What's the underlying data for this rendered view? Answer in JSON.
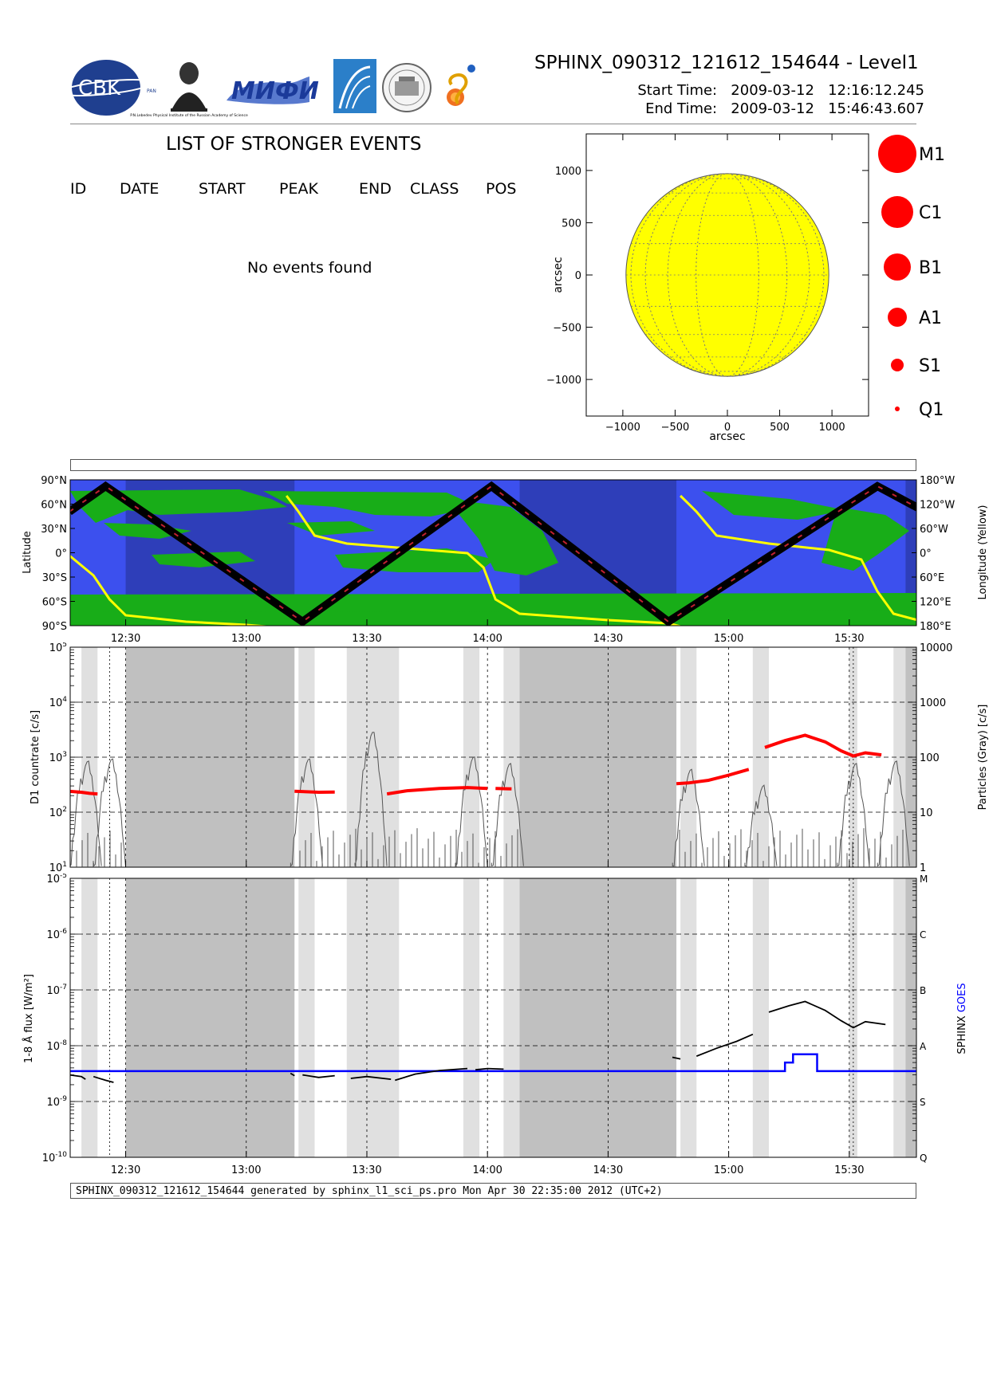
{
  "header": {
    "title": "SPHINX_090312_121612_154644 - Level1",
    "start_label": "Start Time:",
    "start_date": "2009-03-12",
    "start_time": "12:16:12.245",
    "end_label": "End Time:",
    "end_date": "2009-03-12",
    "end_time": "15:46:43.607",
    "logos": [
      "cbk-logo",
      "lebedev-portrait-logo",
      "miph-logo",
      "arc-logo",
      "seal-logo",
      "solar-logo"
    ],
    "cbk_text": "CBK",
    "cbk_small": "PAN",
    "lebedev_caption": "P.N.Lebedev Physical Institute of the Russian Academy of Science",
    "miph_text": "МИФИ"
  },
  "events": {
    "heading": "LIST OF STRONGER EVENTS",
    "columns": [
      "ID",
      "DATE",
      "START",
      "PEAK",
      "END",
      "CLASS",
      "POS"
    ],
    "empty_message": "No events found"
  },
  "legend": {
    "items": [
      {
        "label": "M1",
        "radius": 24
      },
      {
        "label": "C1",
        "radius": 20
      },
      {
        "label": "B1",
        "radius": 17
      },
      {
        "label": "A1",
        "radius": 12
      },
      {
        "label": "S1",
        "radius": 8
      },
      {
        "label": "Q1",
        "radius": 3
      }
    ],
    "color": "#ff0000"
  },
  "footer": {
    "text": "SPHINX_090312_121612_154644 generated by sphinx_l1_sci_ps.pro Mon Apr 30 22:35:00 2012 (UTC+2)"
  },
  "chart_data": [
    {
      "type": "scatter",
      "name": "solar-disk-map",
      "xlabel": "arcsec",
      "ylabel": "arcsec",
      "xlim": [
        -1350,
        1350
      ],
      "ylim": [
        -1350,
        1350
      ],
      "xticks": [
        "−1000",
        "−500",
        "0",
        "500",
        "1000"
      ],
      "yticks": [
        "−1000",
        "−500",
        "0",
        "500",
        "1000"
      ],
      "disk_radius": 970,
      "disk_color": "#ffff00",
      "grid": "dotted"
    },
    {
      "type": "line",
      "name": "orbit-map",
      "ylabel_left": "Latitude",
      "ylabel_right": "Longitude (Yellow)",
      "yticks_left": [
        "90°N",
        "60°N",
        "30°N",
        "0°",
        "30°S",
        "60°S",
        "90°S"
      ],
      "yticks_right": [
        "180°W",
        "120°W",
        "60°W",
        "0°",
        "60°E",
        "120°E",
        "180°E"
      ],
      "xticks": [
        "12:30",
        "13:00",
        "13:30",
        "14:00",
        "14:30",
        "15:00",
        "15:30"
      ],
      "colors": {
        "ocean": "#3c50ee",
        "land": "#18ad18",
        "track": "#000000",
        "longitude": "#ffff00"
      }
    },
    {
      "type": "line",
      "name": "d1-countrate",
      "ylabel_left": "D1 countrate [c/s]",
      "ylabel_right": "Particles (Gray) [c/s]",
      "yscale": "log",
      "ylim": [
        10,
        100000
      ],
      "yticks_left": [
        "10^1",
        "10^2",
        "10^3",
        "10^4",
        "10^5"
      ],
      "yticks_right": [
        "1",
        "10",
        "100",
        "1000",
        "10000"
      ],
      "xticks": [
        "12:30",
        "13:00",
        "13:30",
        "14:00",
        "14:30",
        "15:00",
        "15:30"
      ],
      "series": [
        {
          "name": "D1",
          "color": "#ff0000",
          "segments": [
            [
              [
                "12:16",
                240
              ],
              [
                "12:19",
                230
              ],
              [
                "12:21",
                220
              ],
              [
                "12:23",
                215
              ]
            ],
            [
              [
                "13:12",
                240
              ],
              [
                "13:15",
                235
              ],
              [
                "13:18",
                230
              ],
              [
                "13:22",
                232
              ]
            ],
            [
              [
                "13:35",
                215
              ],
              [
                "13:40",
                245
              ],
              [
                "13:48",
                270
              ],
              [
                "13:55",
                280
              ],
              [
                "14:00",
                270
              ]
            ],
            [
              [
                "14:02",
                270
              ],
              [
                "14:06",
                265
              ]
            ],
            [
              [
                "14:47",
                330
              ],
              [
                "14:50",
                340
              ],
              [
                "14:55",
                380
              ],
              [
                "15:00",
                470
              ],
              [
                "15:05",
                600
              ]
            ],
            [
              [
                "15:09",
                1500
              ],
              [
                "15:14",
                2000
              ],
              [
                "15:19",
                2500
              ],
              [
                "15:24",
                1900
              ],
              [
                "15:28",
                1300
              ],
              [
                "15:31",
                1050
              ],
              [
                "15:34",
                1200
              ],
              [
                "15:38",
                1100
              ]
            ]
          ]
        },
        {
          "name": "Particles",
          "color": "#555555",
          "peaks": [
            [
              "12:20",
              1000
            ],
            [
              "12:26",
              1100
            ],
            [
              "13:15",
              1100
            ],
            [
              "13:31",
              3500
            ],
            [
              "13:56",
              1200
            ],
            [
              "14:05",
              900
            ],
            [
              "14:50",
              700
            ],
            [
              "15:08",
              350
            ],
            [
              "15:31",
              900
            ],
            [
              "15:41",
              1000
            ]
          ]
        }
      ]
    },
    {
      "type": "line",
      "name": "goes-flux",
      "ylabel_left": "1-8 Å flux [W/m²]",
      "ylabel_right_prefix": "SPHINX",
      "ylabel_right_suffix": "GOES",
      "yscale": "log",
      "ylim": [
        1e-10,
        1e-05
      ],
      "yticks_left": [
        "10^-10",
        "10^-9",
        "10^-8",
        "10^-7",
        "10^-6",
        "10^-5"
      ],
      "yticks_right": [
        "Q",
        "S",
        "A",
        "B",
        "C",
        "M"
      ],
      "xticks": [
        "12:30",
        "13:00",
        "13:30",
        "14:00",
        "14:30",
        "15:00",
        "15:30"
      ],
      "series": [
        {
          "name": "SPHINX",
          "color": "#000000",
          "segments": [
            [
              [
                "12:16",
                3e-09
              ],
              [
                "12:19",
                2.8e-09
              ],
              [
                "12:20",
                2.5e-09
              ]
            ],
            [
              [
                "12:22",
                2.8e-09
              ],
              [
                "12:25",
                2.4e-09
              ],
              [
                "12:27",
                2.2e-09
              ]
            ],
            [
              [
                "13:11",
                3.2e-09
              ],
              [
                "13:12",
                2.9e-09
              ]
            ],
            [
              [
                "13:14",
                3e-09
              ],
              [
                "13:18",
                2.7e-09
              ],
              [
                "13:22",
                2.9e-09
              ]
            ],
            [
              [
                "13:26",
                2.6e-09
              ],
              [
                "13:30",
                2.8e-09
              ],
              [
                "13:36",
                2.5e-09
              ]
            ],
            [
              [
                "13:37",
                2.4e-09
              ],
              [
                "13:42",
                3.1e-09
              ],
              [
                "13:48",
                3.6e-09
              ],
              [
                "13:55",
                3.9e-09
              ]
            ],
            [
              [
                "13:57",
                3.7e-09
              ],
              [
                "14:00",
                3.9e-09
              ],
              [
                "14:04",
                3.8e-09
              ]
            ],
            [
              [
                "14:46",
                6.2e-09
              ],
              [
                "14:48",
                5.8e-09
              ]
            ],
            [
              [
                "14:52",
                6.5e-09
              ],
              [
                "14:57",
                9e-09
              ],
              [
                "15:02",
                1.2e-08
              ],
              [
                "15:06",
                1.6e-08
              ]
            ],
            [
              [
                "15:10",
                4e-08
              ],
              [
                "15:15",
                5.2e-08
              ],
              [
                "15:19",
                6.2e-08
              ],
              [
                "15:24",
                4.3e-08
              ],
              [
                "15:28",
                2.8e-08
              ],
              [
                "15:31",
                2.1e-08
              ],
              [
                "15:34",
                2.7e-08
              ],
              [
                "15:39",
                2.4e-08
              ]
            ]
          ]
        },
        {
          "name": "GOES",
          "color": "#0000ff",
          "steps": [
            [
              "12:16",
              3.5e-09
            ],
            [
              "15:14",
              3.5e-09
            ],
            [
              "15:14",
              5e-09
            ],
            [
              "15:16",
              5e-09
            ],
            [
              "15:16",
              7e-09
            ],
            [
              "15:22",
              7e-09
            ],
            [
              "15:22",
              3.5e-09
            ],
            [
              "15:47",
              3.5e-09
            ]
          ]
        }
      ]
    }
  ],
  "bands": {
    "light": [
      [
        "12:19",
        "12:23"
      ],
      [
        "13:13",
        "13:17"
      ],
      [
        "13:25",
        "13:38"
      ],
      [
        "13:54",
        "13:58"
      ],
      [
        "14:04",
        "14:08"
      ],
      [
        "14:48",
        "14:52"
      ],
      [
        "15:06",
        "15:10"
      ],
      [
        "15:30",
        "15:32"
      ],
      [
        "15:41",
        "15:44"
      ]
    ],
    "dark": [
      [
        "12:30",
        "13:12"
      ],
      [
        "14:08",
        "14:47"
      ],
      [
        "15:44",
        "15:47"
      ]
    ]
  }
}
